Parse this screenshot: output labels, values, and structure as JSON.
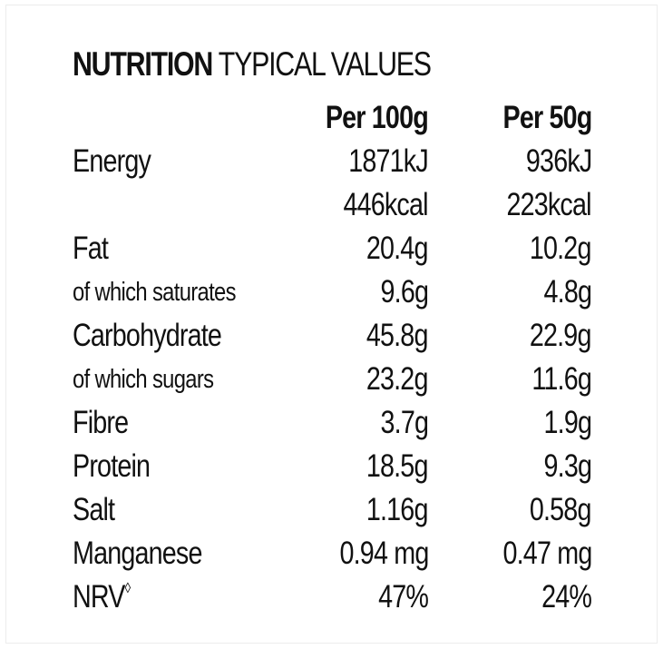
{
  "title": {
    "bold": "NUTRITION",
    "light": "TYPICAL VALUES"
  },
  "columns": [
    "Per 100g",
    "Per 50g"
  ],
  "rows": [
    {
      "label": "Energy",
      "per100": "1871kJ",
      "per50": "936kJ",
      "style": "normal"
    },
    {
      "label": "",
      "per100": "446kcal",
      "per50": "223kcal",
      "style": "normal"
    },
    {
      "label": "Fat",
      "per100": "20.4g",
      "per50": "10.2g",
      "style": "normal"
    },
    {
      "label": "of which saturates",
      "per100": "9.6g",
      "per50": "4.8g",
      "style": "small"
    },
    {
      "label": "Carbohydrate",
      "per100": "45.8g",
      "per50": "22.9g",
      "style": "normal"
    },
    {
      "label": "of which sugars",
      "per100": "23.2g",
      "per50": "11.6g",
      "style": "small"
    },
    {
      "label": "Fibre",
      "per100": "3.7g",
      "per50": "1.9g",
      "style": "normal"
    },
    {
      "label": "Protein",
      "per100": "18.5g",
      "per50": "9.3g",
      "style": "normal"
    },
    {
      "label": "Salt",
      "per100": "1.16g",
      "per50": "0.58g",
      "style": "normal"
    },
    {
      "label": "Manganese",
      "per100": "0.94 mg",
      "per50": "0.47 mg",
      "style": "normal"
    },
    {
      "label": "NRV",
      "label_mark": "◊",
      "per100": "47%",
      "per50": "24%",
      "style": "normal"
    }
  ]
}
